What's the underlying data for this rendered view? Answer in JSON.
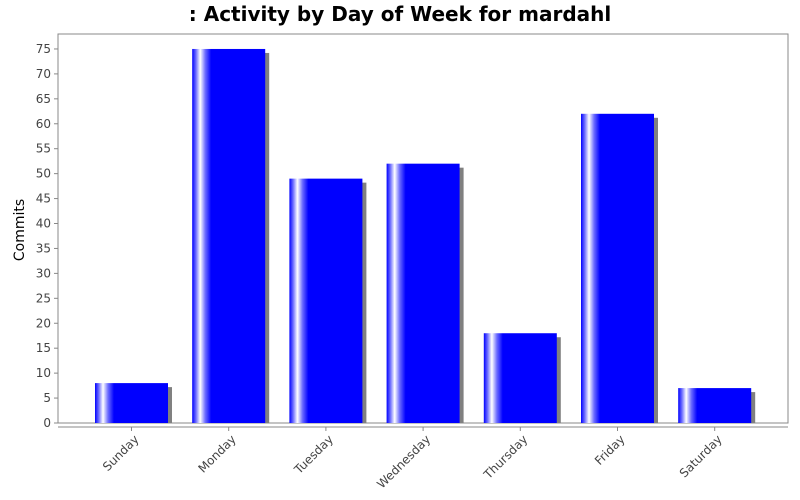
{
  "chart_data": {
    "type": "bar",
    "title": ": Activity by Day of Week for mardahl",
    "xlabel": "",
    "ylabel": "Commits",
    "categories": [
      "Sunday",
      "Monday",
      "Tuesday",
      "Wednesday",
      "Thursday",
      "Friday",
      "Saturday"
    ],
    "values": [
      8,
      75,
      49,
      52,
      18,
      62,
      7
    ],
    "ylim": [
      0,
      78
    ],
    "yticks": [
      0,
      5,
      10,
      15,
      20,
      25,
      30,
      35,
      40,
      45,
      50,
      55,
      60,
      65,
      70,
      75
    ],
    "grid": false,
    "legend": "none",
    "colors": {
      "bar": "#0000ff",
      "bar_highlight": "#ffffff",
      "bar_shadow": "#808080",
      "axis": "#888888",
      "plot_border": "#888888",
      "background": "#ffffff"
    }
  }
}
